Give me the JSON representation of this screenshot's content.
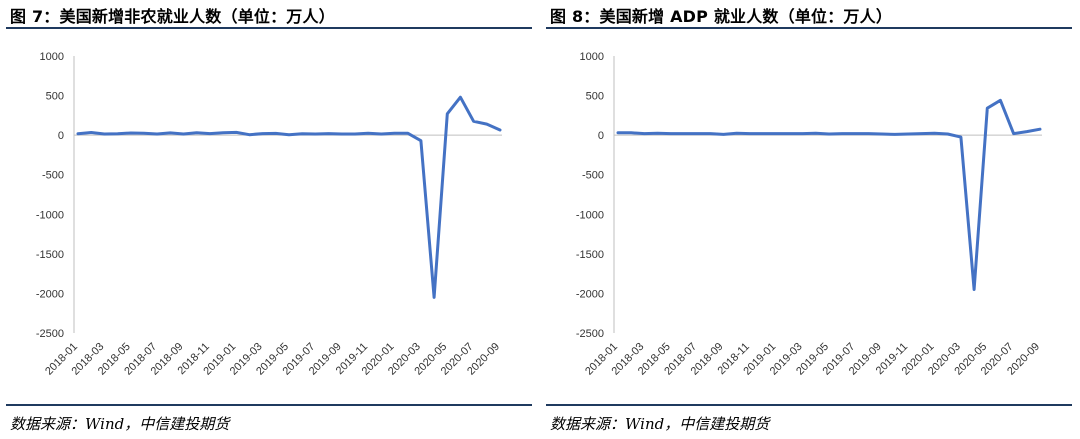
{
  "charts": [
    {
      "title": "图 7：美国新增非农就业人数（单位：万人）",
      "source": "数据来源：Wind，中信建投期货"
    },
    {
      "title": "图 8：美国新增 ADP 就业人数（单位：万人）",
      "source": "数据来源：Wind，中信建投期货"
    }
  ],
  "chart_data": [
    {
      "type": "line",
      "title": "图 7：美国新增非农就业人数（单位：万人）",
      "xlabel": "",
      "ylabel": "",
      "ylim": [
        -2500,
        1000
      ],
      "yticks": [
        1000,
        500,
        0,
        -500,
        -1000,
        -1500,
        -2000,
        -2500
      ],
      "grid": false,
      "color": "#4472c4",
      "x": [
        "2018-01",
        "2018-02",
        "2018-03",
        "2018-04",
        "2018-05",
        "2018-06",
        "2018-07",
        "2018-08",
        "2018-09",
        "2018-10",
        "2018-11",
        "2018-12",
        "2019-01",
        "2019-02",
        "2019-03",
        "2019-04",
        "2019-05",
        "2019-06",
        "2019-07",
        "2019-08",
        "2019-09",
        "2019-10",
        "2019-11",
        "2019-12",
        "2020-01",
        "2020-02",
        "2020-03",
        "2020-04",
        "2020-05",
        "2020-06",
        "2020-07",
        "2020-08",
        "2020-09"
      ],
      "xticklabels": [
        "2018-01",
        "2018-03",
        "2018-05",
        "2018-07",
        "2018-09",
        "2018-11",
        "2019-01",
        "2019-03",
        "2019-05",
        "2019-07",
        "2019-09",
        "2019-11",
        "2020-01",
        "2020-03",
        "2020-05",
        "2020-07",
        "2020-09"
      ],
      "values": [
        18,
        33,
        15,
        17,
        27,
        25,
        15,
        28,
        15,
        30,
        20,
        30,
        35,
        5,
        20,
        22,
        5,
        18,
        15,
        20,
        15,
        15,
        25,
        15,
        25,
        25,
        -70,
        -2050,
        270,
        480,
        175,
        140,
        65
      ]
    },
    {
      "type": "line",
      "title": "图 8：美国新增 ADP 就业人数（单位：万人）",
      "xlabel": "",
      "ylabel": "",
      "ylim": [
        -2500,
        1000
      ],
      "yticks": [
        1000,
        500,
        0,
        -500,
        -1000,
        -1500,
        -2000,
        -2500
      ],
      "grid": false,
      "color": "#4472c4",
      "x": [
        "2018-01",
        "2018-02",
        "2018-03",
        "2018-04",
        "2018-05",
        "2018-06",
        "2018-07",
        "2018-08",
        "2018-09",
        "2018-10",
        "2018-11",
        "2018-12",
        "2019-01",
        "2019-02",
        "2019-03",
        "2019-04",
        "2019-05",
        "2019-06",
        "2019-07",
        "2019-08",
        "2019-09",
        "2019-10",
        "2019-11",
        "2019-12",
        "2020-01",
        "2020-02",
        "2020-03",
        "2020-04",
        "2020-05",
        "2020-06",
        "2020-07",
        "2020-08",
        "2020-09"
      ],
      "xticklabels": [
        "2018-01",
        "2018-03",
        "2018-05",
        "2018-07",
        "2018-09",
        "2018-11",
        "2019-01",
        "2019-03",
        "2019-05",
        "2019-07",
        "2019-09",
        "2019-11",
        "2020-01",
        "2020-03",
        "2020-05",
        "2020-07",
        "2020-09"
      ],
      "values": [
        30,
        30,
        20,
        25,
        20,
        20,
        20,
        20,
        10,
        25,
        20,
        20,
        20,
        20,
        20,
        25,
        15,
        20,
        20,
        20,
        15,
        10,
        15,
        20,
        25,
        15,
        -25,
        -1950,
        340,
        440,
        20,
        45,
        75
      ]
    }
  ]
}
